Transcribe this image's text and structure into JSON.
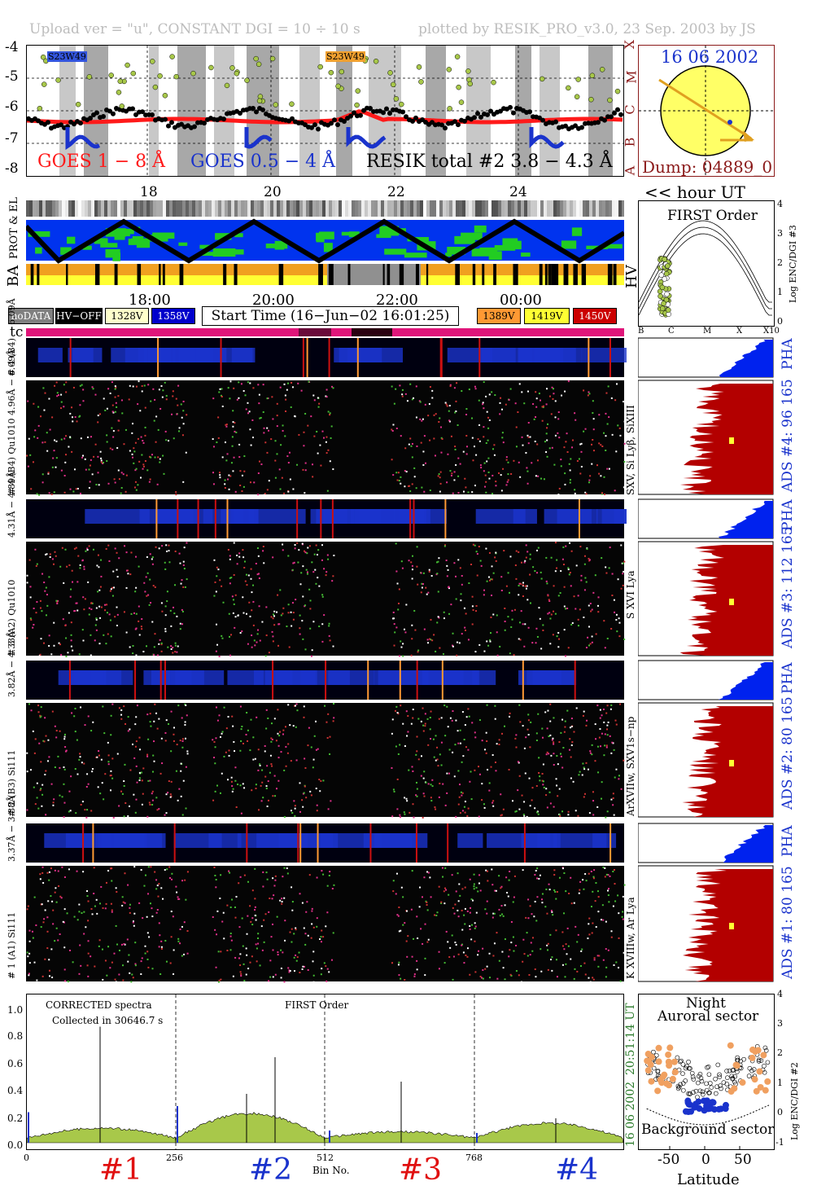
{
  "header": {
    "left": "Upload ver = \"u\", CONSTANT  DGI =  10 ÷  10 s",
    "right": "plotted by RESIK_PRO_v3.0, 23 Sep. 2003 by JS"
  },
  "colors": {
    "goes_long": "#ff1a1a",
    "goes_short": "#1a33cc",
    "resik": "#000000",
    "ads_fill": "#b30000",
    "pha_fill": "#0022ee",
    "sun": "#ffff66",
    "spectrum_fill": "#a8c84a",
    "legend_nodata": "#808080",
    "legend_hvoff": "#000000",
    "v1328": "#ffffcc",
    "v1358": "#0000cc",
    "v1389": "#ff9933",
    "v1419": "#ffff33",
    "v1450": "#cc0000"
  },
  "lightcurve": {
    "ytick_labels": [
      "-4",
      "-5",
      "-6",
      "-7",
      "-8"
    ],
    "right_letters": [
      "X",
      "M",
      "C",
      "B",
      "A"
    ],
    "xtick_labels": [
      "18",
      "20",
      "22",
      "24"
    ],
    "xunit": "<< hour UT",
    "tags": [
      "S23W49",
      "S23W49"
    ],
    "legend_goes18": "GOES 1 − 8 Å",
    "legend_goes054": "GOES 0.5 − 4 Å",
    "legend_resik": "RESIK total #2  3.8 − 4.3 Å"
  },
  "sun": {
    "date": "16 06 2002",
    "dump": "Dump: 04889_0"
  },
  "status": {
    "prot_label": "PROT  & EL",
    "ba_label": "BA",
    "hv_label": "HV",
    "time_labels": [
      "18:00",
      "20:00",
      "22:00",
      "00:00"
    ],
    "start_time": "Start Time (16−Jun−02 16:01:25)",
    "tc_label": "tc",
    "legend": [
      {
        "text": "noDATA"
      },
      {
        "text": "HV−OFF"
      },
      {
        "text": "1328V"
      },
      {
        "text": "1358V"
      },
      {
        "text": "1389V"
      },
      {
        "text": "1419V"
      },
      {
        "text": "1450V"
      }
    ]
  },
  "first_order": {
    "title": "FIRST Order",
    "ylabel": "Log ENC/DGI #3",
    "yticks": [
      "4",
      "3",
      "2",
      "1",
      "0"
    ],
    "xticks": [
      "B",
      "C",
      "M",
      "X",
      "X10"
    ]
  },
  "channels": [
    {
      "pha_label": "# 4 (B4) − 6.09Å",
      "ads_label": "# 4 (B4) Qu1010 4.96Å − 6.09Å",
      "short_left": "Qu1010 4.96Å − 6.09Å",
      "left_bottom": "# 4 (B4)",
      "lines": "SXV, Si Lyβ, SiXIII",
      "ads": "ADS #4:   96 165",
      "pha": "PHA"
    },
    {
      "pha_label": "4.31Å − 4.89Å",
      "left_bottom": "# 3 (A2) Qu1010",
      "short_left": "4.31Å − 4.89Å",
      "lines": "S XVI Lya",
      "ads": "ADS #3:   112 165",
      "pha": "PHA"
    },
    {
      "pha_label": "3.82Å − 4.33Å",
      "left_bottom": "# 2 (B3) Si111",
      "short_left": "3.82Å − 4.33Å",
      "lines": "ArXVIIw, SXV1s−np",
      "ads": "ADS #2:   80 165",
      "pha": "PHA"
    },
    {
      "pha_label": "3.37Å − 3.88Å",
      "left_bottom": "# 1 (A1) Si111",
      "short_left": "3.37Å − 3.88Å",
      "lines": "K XVIIIw, Ar Lya",
      "ads": "ADS #1:   80 165",
      "pha": "PHA"
    }
  ],
  "spectrum": {
    "title": "CORRECTED spectra",
    "collected": "Collected in 30646.7 s",
    "order": "FIRST Order",
    "yticks": [
      "1.0",
      "0.8",
      "0.6",
      "0.4",
      "0.2",
      "0.0"
    ],
    "xticks": [
      "0",
      "256",
      "512",
      "768"
    ],
    "xlabel": "Bin No.",
    "side_time": "20:51:14 UT",
    "side_date": "16 06 2002",
    "bins": [
      "#1",
      "#2",
      "#3",
      "#4"
    ]
  },
  "latitude": {
    "title1": "Night",
    "title2": "Auroral sector",
    "bottom": "Background sector",
    "xlabel": "Latitude",
    "xticks": [
      "-50",
      "0",
      "50"
    ],
    "yticks": [
      "4",
      "3",
      "2",
      "1",
      "0",
      "-1"
    ],
    "ylabel": "Log ENC/DGI #2"
  },
  "chart_data": [
    {
      "type": "line",
      "title": "",
      "xlabel": "<< hour UT",
      "ylabel": "",
      "series": [
        {
          "name": "GOES 1 − 8 Å"
        },
        {
          "name": "GOES 0.5 − 4 Å"
        },
        {
          "name": "RESIK total #2  3.8 − 4.3 Å"
        }
      ],
      "ylim": [
        -8,
        -4
      ],
      "xlim": [
        16,
        26
      ]
    },
    {
      "type": "line",
      "title": "CORRECTED spectra",
      "xlabel": "Bin No.",
      "ylabel": "",
      "ylim": [
        0,
        1.1
      ],
      "xlim": [
        0,
        1024
      ]
    },
    {
      "type": "scatter",
      "title": "Night Auroral sector",
      "xlabel": "Latitude",
      "ylabel": "Log ENC/DGI #2",
      "xlim": [
        -90,
        90
      ],
      "ylim": [
        -1,
        4
      ]
    }
  ]
}
